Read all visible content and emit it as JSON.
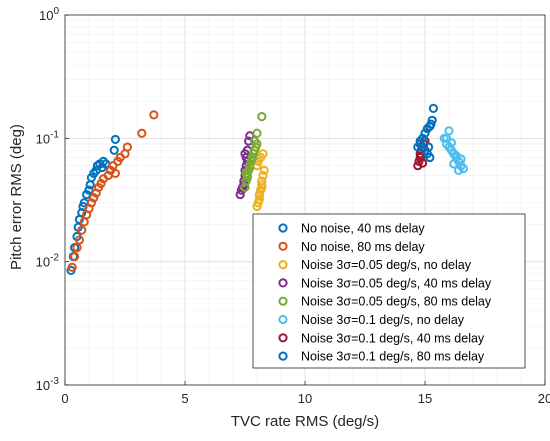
{
  "chart_data": {
    "type": "scatter",
    "xlabel": "TVC rate RMS (deg/s)",
    "ylabel": "Pitch error RMS (deg)",
    "xlim": [
      0,
      20
    ],
    "ylim": [
      0.001,
      1
    ],
    "yscale": "log",
    "grid": true,
    "legend_position": "bottom-right",
    "x_ticks": [
      "0",
      "5",
      "10",
      "15",
      "20"
    ],
    "y_ticks": [
      {
        "value": 1,
        "base": "10",
        "exp": "0"
      },
      {
        "value": 0.1,
        "base": "10",
        "exp": "-1"
      },
      {
        "value": 0.01,
        "base": "10",
        "exp": "-2"
      },
      {
        "value": 0.001,
        "base": "10",
        "exp": "-3"
      }
    ],
    "series": [
      {
        "legend_label": "No noise, 40 ms delay",
        "color": "#0072BD",
        "x": [
          0.25,
          0.35,
          0.4,
          0.5,
          0.55,
          0.6,
          0.7,
          0.75,
          0.8,
          0.9,
          1.0,
          1.05,
          1.1,
          1.2,
          1.3,
          1.35,
          1.45,
          1.55,
          1.6,
          1.7,
          2.05,
          2.1
        ],
        "y": [
          0.0085,
          0.011,
          0.013,
          0.016,
          0.019,
          0.022,
          0.025,
          0.028,
          0.03,
          0.035,
          0.038,
          0.042,
          0.048,
          0.052,
          0.055,
          0.06,
          0.062,
          0.058,
          0.065,
          0.062,
          0.08,
          0.098
        ]
      },
      {
        "legend_label": "No noise, 80 ms delay",
        "color": "#D95319",
        "x": [
          0.3,
          0.4,
          0.5,
          0.6,
          0.7,
          0.8,
          0.9,
          1.0,
          1.1,
          1.2,
          1.3,
          1.4,
          1.5,
          1.6,
          1.8,
          1.9,
          2.0,
          2.1,
          2.2,
          2.3,
          2.5,
          2.6,
          3.2,
          3.7
        ],
        "y": [
          0.009,
          0.011,
          0.013,
          0.015,
          0.018,
          0.021,
          0.024,
          0.027,
          0.03,
          0.033,
          0.036,
          0.04,
          0.043,
          0.047,
          0.05,
          0.055,
          0.06,
          0.052,
          0.065,
          0.07,
          0.075,
          0.085,
          0.11,
          0.155
        ]
      },
      {
        "legend_label": "Noise 3σ=0.05 deg/s, no delay",
        "color": "#EDB120",
        "x": [
          8.0,
          8.05,
          8.1,
          8.1,
          8.15,
          8.2,
          8.2,
          8.25,
          8.3,
          8.0,
          8.05,
          8.15,
          8.25,
          8.1,
          8.2
        ],
        "y": [
          0.028,
          0.03,
          0.032,
          0.035,
          0.038,
          0.04,
          0.045,
          0.05,
          0.055,
          0.06,
          0.065,
          0.07,
          0.075,
          0.034,
          0.042
        ]
      },
      {
        "legend_label": "Noise 3σ=0.05 deg/s, 40 ms delay",
        "color": "#7E2F8E",
        "x": [
          7.3,
          7.35,
          7.4,
          7.45,
          7.5,
          7.5,
          7.55,
          7.6,
          7.55,
          7.5,
          7.45,
          7.6,
          7.65,
          7.7
        ],
        "y": [
          0.035,
          0.038,
          0.04,
          0.045,
          0.05,
          0.055,
          0.06,
          0.065,
          0.07,
          0.075,
          0.042,
          0.08,
          0.095,
          0.105
        ]
      },
      {
        "legend_label": "Noise 3σ=0.05 deg/s, 80 ms delay",
        "color": "#77AC30",
        "x": [
          7.5,
          7.55,
          7.6,
          7.65,
          7.7,
          7.75,
          7.8,
          7.85,
          7.9,
          7.95,
          8.0,
          7.6,
          7.7,
          7.8,
          7.9,
          8.0,
          8.2,
          7.55
        ],
        "y": [
          0.04,
          0.045,
          0.05,
          0.055,
          0.06,
          0.065,
          0.07,
          0.075,
          0.08,
          0.085,
          0.09,
          0.048,
          0.058,
          0.068,
          0.095,
          0.11,
          0.15,
          0.052
        ]
      },
      {
        "legend_label": "Noise 3σ=0.1 deg/s, no delay",
        "color": "#4DBEEE",
        "x": [
          15.8,
          15.9,
          16.0,
          16.1,
          16.2,
          16.3,
          16.4,
          16.5,
          16.6,
          16.0,
          16.1,
          16.3,
          16.5,
          16.4,
          15.9,
          16.2
        ],
        "y": [
          0.1,
          0.09,
          0.085,
          0.08,
          0.075,
          0.07,
          0.065,
          0.06,
          0.057,
          0.115,
          0.092,
          0.072,
          0.068,
          0.055,
          0.1,
          0.062
        ]
      },
      {
        "legend_label": "Noise 3σ=0.1 deg/s, 40 ms delay",
        "color": "#A2142F",
        "x": [
          14.7,
          14.75,
          14.8,
          14.8,
          14.85,
          14.9,
          14.95,
          15.0,
          14.9,
          14.85
        ],
        "y": [
          0.06,
          0.065,
          0.07,
          0.075,
          0.08,
          0.085,
          0.09,
          0.095,
          0.063,
          0.072
        ]
      },
      {
        "legend_label": "Noise 3σ=0.1 deg/s, 80 ms delay",
        "color": "#0072BD",
        "x": [
          14.7,
          14.8,
          14.9,
          15.0,
          15.1,
          15.2,
          15.25,
          15.3,
          15.35,
          15.0,
          15.1,
          15.2,
          14.8,
          15.15
        ],
        "y": [
          0.085,
          0.09,
          0.1,
          0.11,
          0.12,
          0.125,
          0.13,
          0.14,
          0.175,
          0.08,
          0.075,
          0.07,
          0.095,
          0.085
        ]
      }
    ]
  }
}
